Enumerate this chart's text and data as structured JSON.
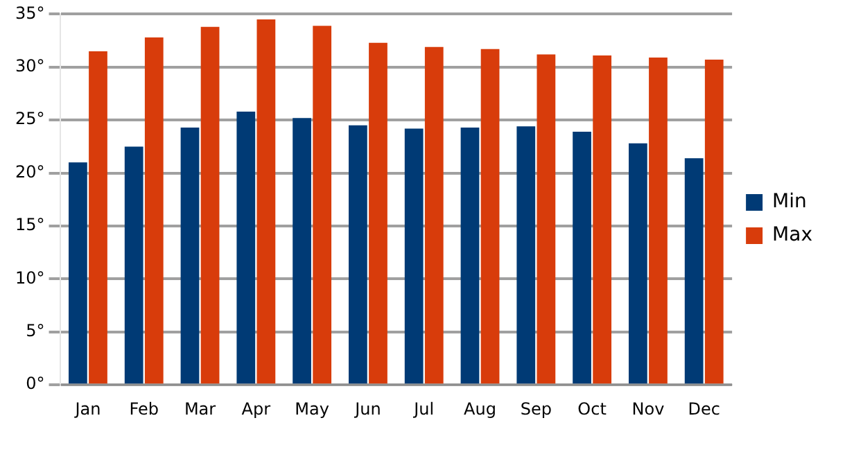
{
  "chart_data": {
    "type": "bar",
    "categories": [
      "Jan",
      "Feb",
      "Mar",
      "Apr",
      "May",
      "Jun",
      "Jul",
      "Aug",
      "Sep",
      "Oct",
      "Nov",
      "Dec"
    ],
    "series": [
      {
        "name": "Min",
        "color": "#003a75",
        "values": [
          21,
          22.5,
          24.3,
          25.8,
          25.2,
          24.5,
          24.2,
          24.3,
          24.4,
          23.9,
          22.8,
          21.4
        ]
      },
      {
        "name": "Max",
        "color": "#d83c0b",
        "values": [
          31.5,
          32.8,
          33.8,
          34.5,
          33.9,
          32.3,
          31.9,
          31.7,
          31.2,
          31.1,
          30.9,
          30.7
        ]
      }
    ],
    "ylim": [
      0,
      35
    ],
    "yticks": [
      {
        "value": 0,
        "label": "0°"
      },
      {
        "value": 5,
        "label": "5°"
      },
      {
        "value": 10,
        "label": "10°"
      },
      {
        "value": 15,
        "label": "15°"
      },
      {
        "value": 20,
        "label": "20°"
      },
      {
        "value": 25,
        "label": "25°"
      },
      {
        "value": 30,
        "label": "30°"
      },
      {
        "value": 35,
        "label": "35°"
      }
    ],
    "grid": "y",
    "legend": "right"
  }
}
